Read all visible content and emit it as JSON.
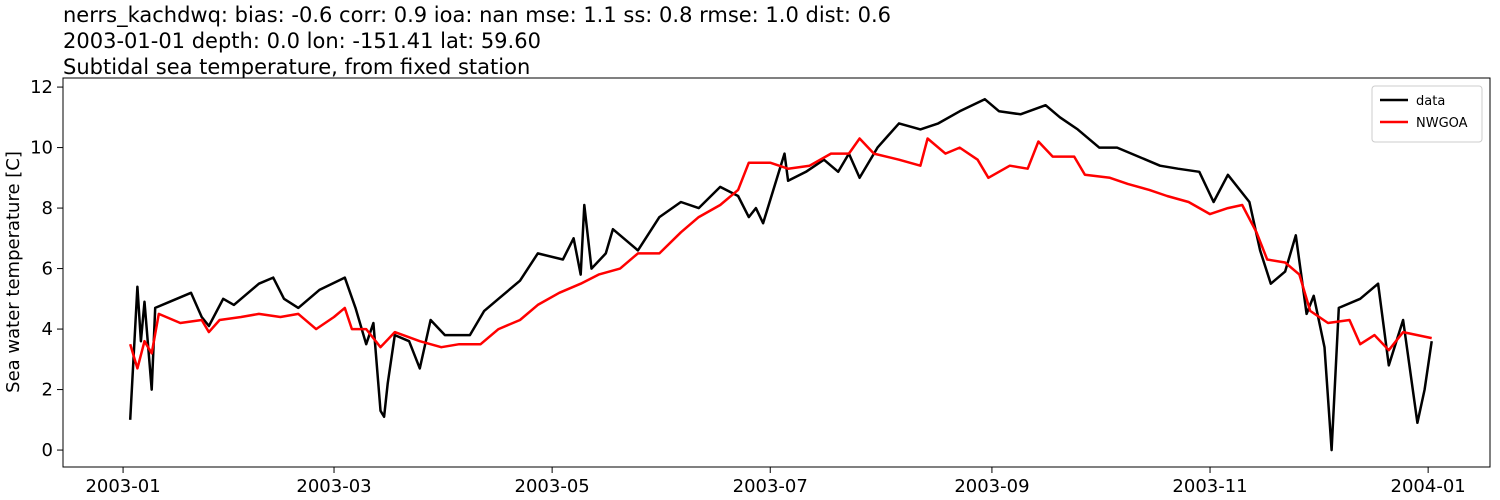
{
  "chart_data": {
    "type": "line",
    "title_lines": [
      "nerrs_kachdwq: bias: -0.6  corr: 0.9  ioa: nan  mse: 1.1  ss: 0.8  rmse: 1.0  dist: 0.6",
      "2003-01-01 depth: 0.0 lon: -151.41 lat: 59.60",
      "Subtidal sea temperature, from fixed station"
    ],
    "ylabel": "Sea water temperature [C]",
    "xlim": [
      -16.8,
      382.3
    ],
    "ylim": [
      -0.56,
      12.3
    ],
    "xticks": [
      {
        "value": 0,
        "label": "2003-01"
      },
      {
        "value": 59,
        "label": "2003-03"
      },
      {
        "value": 120,
        "label": "2003-05"
      },
      {
        "value": 181,
        "label": "2003-07"
      },
      {
        "value": 243,
        "label": "2003-09"
      },
      {
        "value": 304,
        "label": "2003-11"
      },
      {
        "value": 365,
        "label": "2004-01"
      }
    ],
    "yticks": [
      0,
      2,
      4,
      6,
      8,
      10,
      12
    ],
    "legend": "upper right",
    "series": [
      {
        "name": "data",
        "color": "#000000",
        "x": [
          2,
          4,
          5,
          6,
          8,
          9,
          13,
          19,
          22,
          24,
          28,
          31,
          38,
          42,
          45,
          49,
          55,
          62,
          65,
          68,
          70,
          72,
          73,
          74,
          76,
          80,
          83,
          86,
          90,
          97,
          101,
          105,
          111,
          116,
          123,
          126,
          128,
          129,
          131,
          135,
          137,
          144,
          150,
          156,
          161,
          167,
          172,
          175,
          177,
          179,
          185,
          186,
          191,
          196,
          200,
          203,
          206,
          211,
          214,
          217,
          223,
          228,
          234,
          241,
          245,
          251,
          258,
          262,
          267,
          273,
          278,
          284,
          290,
          295,
          301,
          305,
          309,
          315,
          318,
          321,
          325,
          328,
          331,
          333,
          336,
          338,
          340,
          346,
          351,
          354,
          358,
          362,
          364,
          366
        ],
        "values": [
          1.0,
          5.4,
          3.6,
          4.9,
          2.0,
          4.7,
          4.9,
          5.2,
          4.4,
          4.1,
          5.0,
          4.8,
          5.5,
          5.7,
          5.0,
          4.7,
          5.3,
          5.7,
          4.7,
          3.5,
          4.2,
          1.3,
          1.1,
          2.2,
          3.8,
          3.6,
          2.7,
          4.3,
          3.8,
          3.8,
          4.6,
          5.0,
          5.6,
          6.5,
          6.3,
          7.0,
          5.8,
          8.1,
          6.0,
          6.5,
          7.3,
          6.6,
          7.7,
          8.2,
          8.0,
          8.7,
          8.4,
          7.7,
          8.0,
          7.5,
          9.8,
          8.9,
          9.2,
          9.6,
          9.2,
          9.8,
          9.0,
          10.0,
          10.4,
          10.8,
          10.6,
          10.8,
          11.2,
          11.6,
          11.2,
          11.1,
          11.4,
          11.0,
          10.6,
          10.0,
          10.0,
          9.7,
          9.4,
          9.3,
          9.2,
          8.2,
          9.1,
          8.2,
          6.6,
          5.5,
          5.9,
          7.1,
          4.5,
          5.1,
          3.4,
          0.0,
          4.7,
          5.0,
          5.5,
          2.8,
          4.3,
          0.9,
          2.0,
          3.6
        ]
      },
      {
        "name": "NWGOA",
        "color": "#ff0000",
        "x": [
          2,
          4,
          6,
          8,
          10,
          16,
          22,
          24,
          27,
          33,
          38,
          44,
          49,
          54,
          59,
          62,
          64,
          68,
          72,
          76,
          83,
          89,
          94,
          100,
          105,
          111,
          116,
          122,
          128,
          133,
          139,
          144,
          150,
          156,
          161,
          167,
          172,
          175,
          181,
          186,
          192,
          198,
          203,
          206,
          210,
          217,
          223,
          225,
          230,
          234,
          239,
          242,
          248,
          253,
          256,
          260,
          266,
          269,
          276,
          281,
          287,
          292,
          298,
          304,
          309,
          313,
          317,
          320,
          325,
          329,
          332,
          337,
          343,
          346,
          350,
          354,
          358,
          362,
          366
        ],
        "values": [
          3.5,
          2.7,
          3.6,
          3.2,
          4.5,
          4.2,
          4.3,
          3.9,
          4.3,
          4.4,
          4.5,
          4.4,
          4.5,
          4.0,
          4.4,
          4.7,
          4.0,
          4.0,
          3.4,
          3.9,
          3.6,
          3.4,
          3.5,
          3.5,
          4.0,
          4.3,
          4.8,
          5.2,
          5.5,
          5.8,
          6.0,
          6.5,
          6.5,
          7.2,
          7.7,
          8.1,
          8.6,
          9.5,
          9.5,
          9.3,
          9.4,
          9.8,
          9.8,
          10.3,
          9.8,
          9.6,
          9.4,
          10.3,
          9.8,
          10.0,
          9.6,
          9.0,
          9.4,
          9.3,
          10.2,
          9.7,
          9.7,
          9.1,
          9.0,
          8.8,
          8.6,
          8.4,
          8.2,
          7.8,
          8.0,
          8.1,
          7.2,
          6.3,
          6.2,
          5.8,
          4.6,
          4.2,
          4.3,
          3.5,
          3.8,
          3.3,
          3.9,
          3.8,
          3.7
        ]
      }
    ]
  }
}
